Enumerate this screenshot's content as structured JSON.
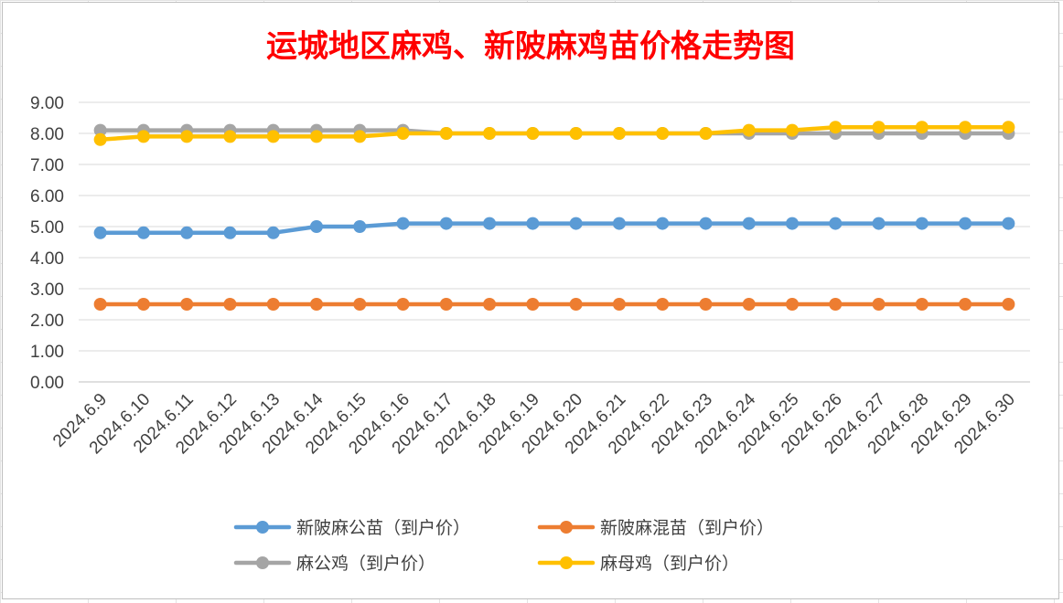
{
  "chart_data": {
    "type": "line",
    "title": "运城地区麻鸡、新陂麻鸡苗价格走势图",
    "categories": [
      "2024.6.9",
      "2024.6.10",
      "2024.6.11",
      "2024.6.12",
      "2024.6.13",
      "2024.6.14",
      "2024.6.15",
      "2024.6.16",
      "2024.6.17",
      "2024.6.18",
      "2024.6.19",
      "2024.6.20",
      "2024.6.21",
      "2024.6.22",
      "2024.6.23",
      "2024.6.24",
      "2024.6.25",
      "2024.6.26",
      "2024.6.27",
      "2024.6.28",
      "2024.6.29",
      "2024.6.30"
    ],
    "ylim": [
      0,
      9
    ],
    "yticks": [
      "0.00",
      "1.00",
      "2.00",
      "3.00",
      "4.00",
      "5.00",
      "6.00",
      "7.00",
      "8.00",
      "9.00"
    ],
    "grid": true,
    "legend_position": "bottom",
    "series": [
      {
        "name": "麻公鸡（到户价）",
        "color": "#a5a5a5",
        "values": [
          8.1,
          8.1,
          8.1,
          8.1,
          8.1,
          8.1,
          8.1,
          8.1,
          8.0,
          8.0,
          8.0,
          8.0,
          8.0,
          8.0,
          8.0,
          8.0,
          8.0,
          8.0,
          8.0,
          8.0,
          8.0,
          8.0
        ]
      },
      {
        "name": "麻母鸡（到户价）",
        "color": "#ffc000",
        "values": [
          7.8,
          7.9,
          7.9,
          7.9,
          7.9,
          7.9,
          7.9,
          8.0,
          8.0,
          8.0,
          8.0,
          8.0,
          8.0,
          8.0,
          8.0,
          8.1,
          8.1,
          8.2,
          8.2,
          8.2,
          8.2,
          8.2
        ]
      },
      {
        "name": "新陂麻公苗（到户价）",
        "color": "#5b9bd5",
        "values": [
          4.8,
          4.8,
          4.8,
          4.8,
          4.8,
          5.0,
          5.0,
          5.1,
          5.1,
          5.1,
          5.1,
          5.1,
          5.1,
          5.1,
          5.1,
          5.1,
          5.1,
          5.1,
          5.1,
          5.1,
          5.1,
          5.1
        ]
      },
      {
        "name": "新陂麻混苗（到户价）",
        "color": "#ed7d31",
        "values": [
          2.5,
          2.5,
          2.5,
          2.5,
          2.5,
          2.5,
          2.5,
          2.5,
          2.5,
          2.5,
          2.5,
          2.5,
          2.5,
          2.5,
          2.5,
          2.5,
          2.5,
          2.5,
          2.5,
          2.5,
          2.5,
          2.5
        ]
      }
    ],
    "legend_order": [
      "新陂麻公苗（到户价）",
      "新陂麻混苗（到户价）",
      "麻公鸡（到户价）",
      "麻母鸡（到户价）"
    ]
  }
}
